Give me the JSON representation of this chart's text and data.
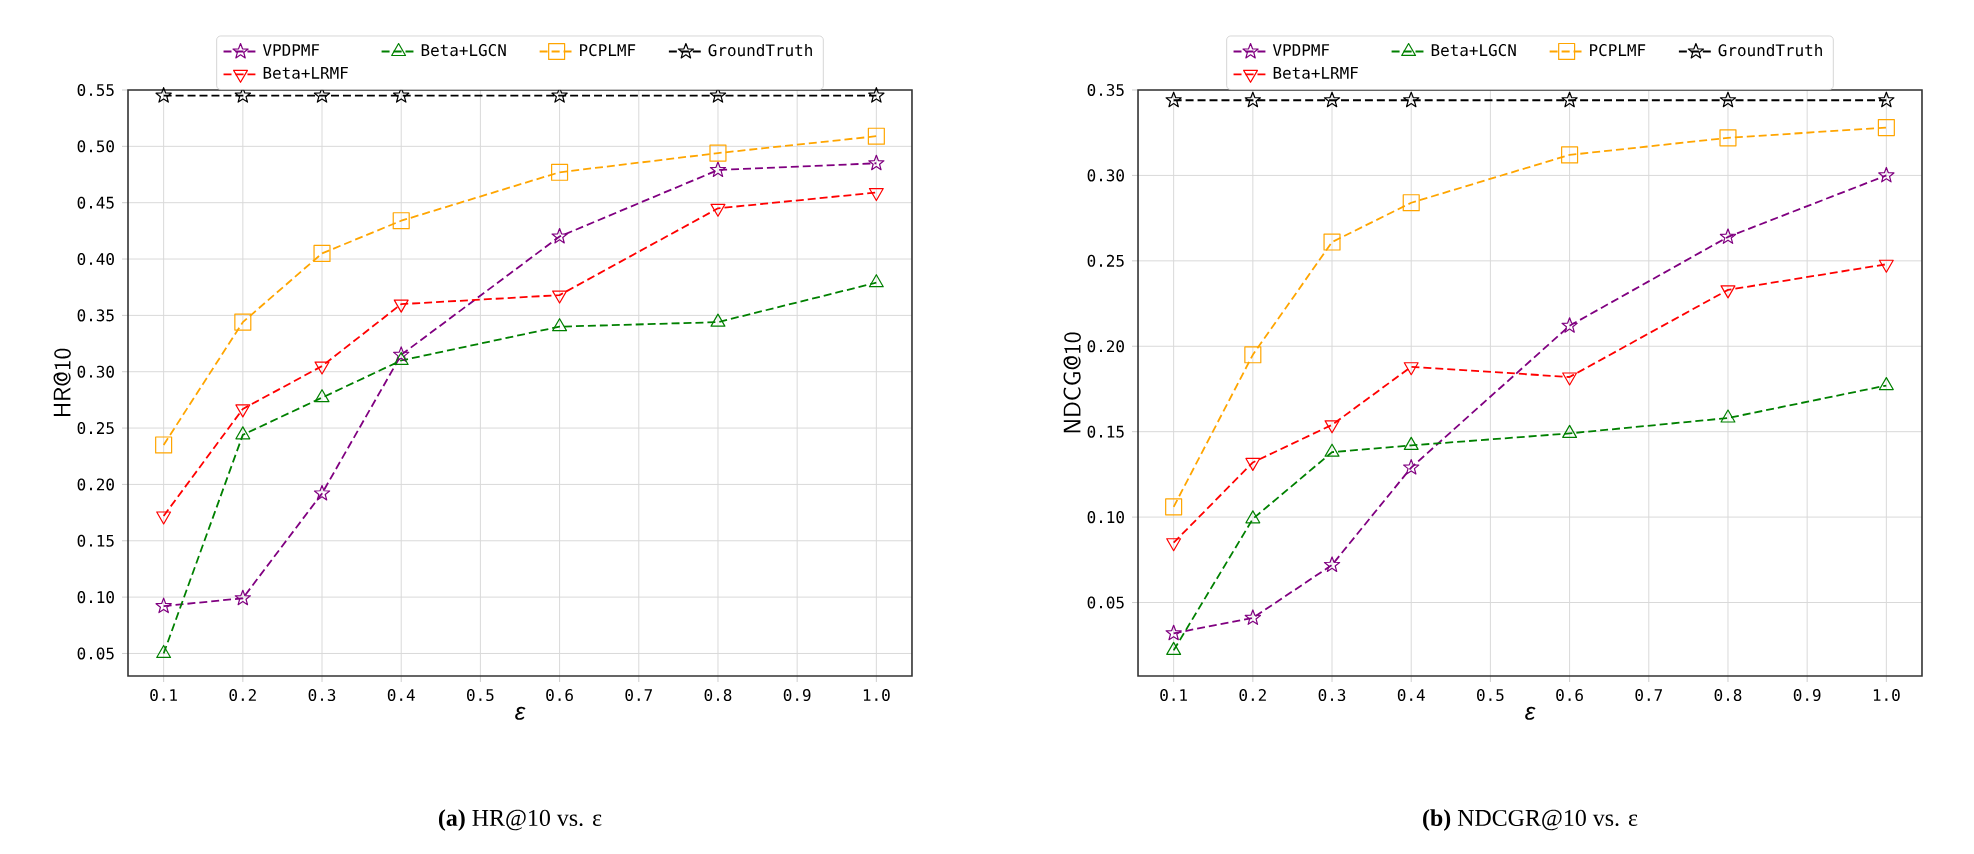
{
  "chart_data": [
    {
      "type": "line",
      "title": "**(a)** HR@10 vs. ε",
      "xlabel": "ε",
      "ylabel": "HR@10",
      "x": [
        0.1,
        0.2,
        0.3,
        0.4,
        0.6,
        0.8,
        1.0
      ],
      "xlim": [
        0.055,
        1.045
      ],
      "xticks": [
        0.1,
        0.2,
        0.3,
        0.4,
        0.5,
        0.6,
        0.7,
        0.8,
        0.9,
        {
          "value": 1.0,
          "label": "1.0"
        }
      ],
      "ylim": [
        0.03,
        0.55
      ],
      "yticks": [
        0.05,
        {
          "value": 0.1,
          "label": "0.10"
        },
        0.15,
        {
          "value": 0.2,
          "label": "0.20"
        },
        0.25,
        {
          "value": 0.3,
          "label": "0.30"
        },
        0.35,
        {
          "value": 0.4,
          "label": "0.40"
        },
        0.45,
        {
          "value": 0.5,
          "label": "0.50"
        },
        0.55
      ],
      "grid": true,
      "legend": "top",
      "line_style": "dashed",
      "series": [
        {
          "name": "VPDPMF",
          "color": "#800080",
          "marker": "star",
          "values": [
            0.092,
            0.099,
            0.192,
            0.315,
            0.42,
            0.479,
            0.485
          ]
        },
        {
          "name": "Beta+LRMF",
          "color": "#ff0000",
          "marker": "triangle-down",
          "values": [
            0.172,
            0.267,
            0.305,
            0.36,
            0.368,
            0.445,
            0.459
          ]
        },
        {
          "name": "Beta+LGCN",
          "color": "#008000",
          "marker": "triangle",
          "values": [
            0.05,
            0.244,
            0.277,
            0.31,
            0.34,
            0.344,
            0.379
          ]
        },
        {
          "name": "PCPLMF",
          "color": "#ffa500",
          "marker": "square",
          "values": [
            0.235,
            0.344,
            0.405,
            0.434,
            0.477,
            0.494,
            0.509
          ]
        },
        {
          "name": "GroundTruth",
          "color": "#000000",
          "marker": "star",
          "values": [
            0.545,
            0.545,
            0.545,
            0.545,
            0.545,
            0.545,
            0.545
          ]
        }
      ]
    },
    {
      "type": "line",
      "title": "**(b)** NDCGR@10 vs. ε",
      "xlabel": "ε",
      "ylabel": "NDCG@10",
      "x": [
        0.1,
        0.2,
        0.3,
        0.4,
        0.6,
        0.8,
        1.0
      ],
      "xlim": [
        0.055,
        1.045
      ],
      "xticks": [
        0.1,
        0.2,
        0.3,
        0.4,
        0.5,
        0.6,
        0.7,
        0.8,
        0.9,
        {
          "value": 1.0,
          "label": "1.0"
        }
      ],
      "ylim": [
        0.007,
        0.35
      ],
      "yticks": [
        0.05,
        {
          "value": 0.1,
          "label": "0.10"
        },
        0.15,
        {
          "value": 0.2,
          "label": "0.20"
        },
        0.25,
        {
          "value": 0.3,
          "label": "0.30"
        },
        0.35
      ],
      "grid": true,
      "legend": "top",
      "line_style": "dashed",
      "series": [
        {
          "name": "VPDPMF",
          "color": "#800080",
          "marker": "star",
          "values": [
            0.032,
            0.041,
            0.072,
            0.129,
            0.212,
            0.264,
            0.3
          ]
        },
        {
          "name": "Beta+LRMF",
          "color": "#ff0000",
          "marker": "triangle-down",
          "values": [
            0.085,
            0.132,
            0.154,
            0.188,
            0.182,
            0.233,
            0.248
          ]
        },
        {
          "name": "Beta+LGCN",
          "color": "#008000",
          "marker": "triangle",
          "values": [
            0.022,
            0.099,
            0.138,
            0.142,
            0.149,
            0.158,
            0.177
          ]
        },
        {
          "name": "PCPLMF",
          "color": "#ffa500",
          "marker": "square",
          "values": [
            0.106,
            0.195,
            0.261,
            0.284,
            0.312,
            0.322,
            0.328
          ]
        },
        {
          "name": "GroundTruth",
          "color": "#000000",
          "marker": "star",
          "values": [
            0.344,
            0.344,
            0.344,
            0.344,
            0.344,
            0.344,
            0.344
          ]
        }
      ]
    }
  ]
}
